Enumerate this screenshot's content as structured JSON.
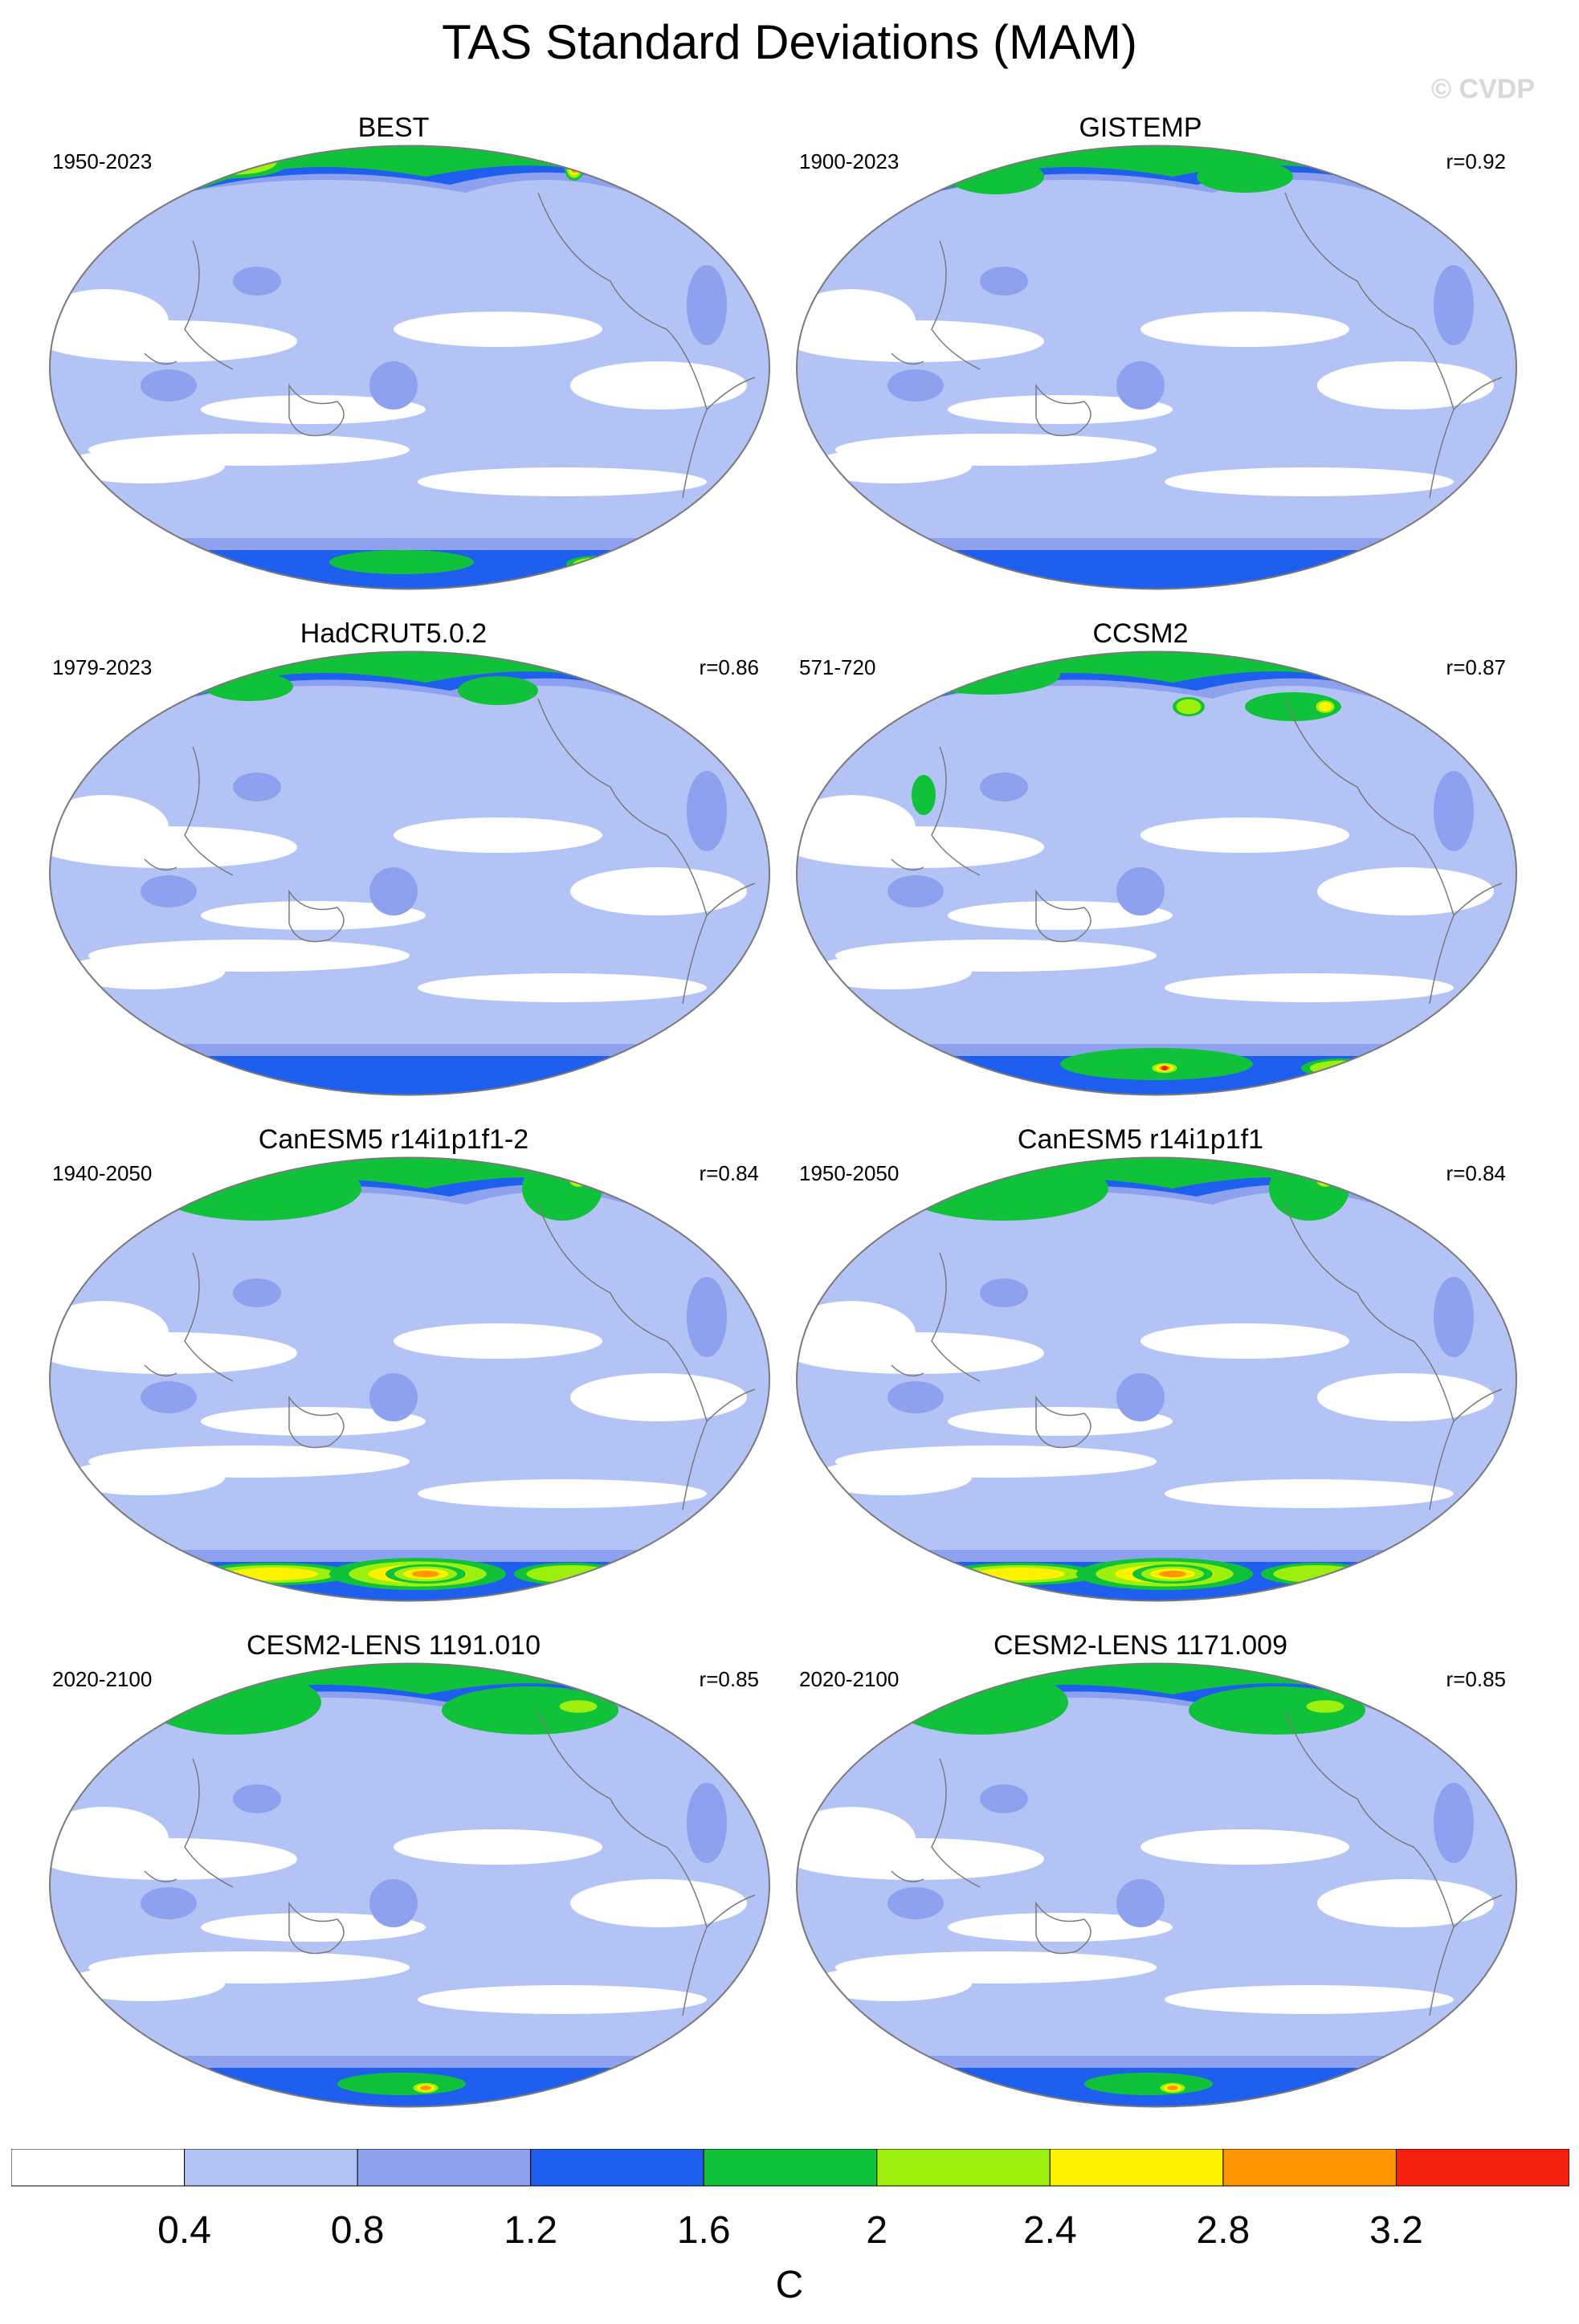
{
  "title": "TAS Standard Deviations (MAM)",
  "watermark": "© CVDP",
  "colors": {
    "levels": [
      "#ffffff",
      "#b4c3f5",
      "#8da1ee",
      "#1f5fef",
      "#10c23a",
      "#9df00e",
      "#fff200",
      "#ff9600",
      "#f5200f"
    ],
    "land_outline": "#7a7a7a",
    "map_edge": "#7a7a7a"
  },
  "panels": [
    {
      "title": "BEST",
      "period": "1950-2023",
      "corr": "",
      "hotspots": "obs"
    },
    {
      "title": "GISTEMP",
      "period": "1900-2023",
      "corr": "r=0.92",
      "hotspots": "obs2"
    },
    {
      "title": "HadCRUT5.0.2",
      "period": "1979-2023",
      "corr": "r=0.86",
      "hotspots": "had"
    },
    {
      "title": "CCSM2",
      "period": "571-720",
      "corr": "r=0.87",
      "hotspots": "ccsm"
    },
    {
      "title": "CanESM5 r14i1p1f1-2",
      "period": "1940-2050",
      "corr": "r=0.84",
      "hotspots": "can"
    },
    {
      "title": "CanESM5 r14i1p1f1",
      "period": "1950-2050",
      "corr": "r=0.84",
      "hotspots": "can"
    },
    {
      "title": "CESM2-LENS 1191.010",
      "period": "2020-2100",
      "corr": "r=0.85",
      "hotspots": "cesm"
    },
    {
      "title": "CESM2-LENS 1171.009",
      "period": "2020-2100",
      "corr": "r=0.85",
      "hotspots": "cesm"
    }
  ],
  "colorbar": {
    "labels": [
      "0.4",
      "0.8",
      "1.2",
      "1.6",
      "2",
      "2.4",
      "2.8",
      "3.2"
    ],
    "units": "C"
  }
}
